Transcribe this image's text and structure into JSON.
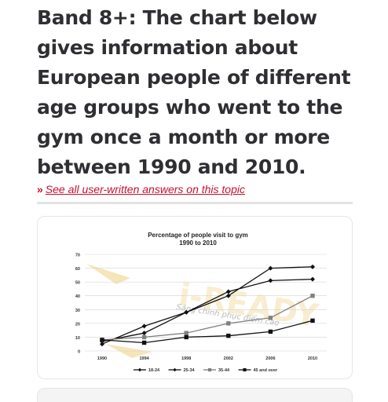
{
  "article": {
    "title": "Band 8+: The chart below gives information about European people of different age groups who went to the gym once a month or more between 1990 and 2010.",
    "link_arrows": "»",
    "link_text": "See all user-written answers on this topic"
  },
  "watermark": {
    "brand": "i-READY",
    "tagline": "Sáng chinh phục điểm cao",
    "color": "#e8c25a"
  },
  "chart_data": {
    "type": "line",
    "title": "Percentage of people visit to gym",
    "subtitle": "1990 to 2010",
    "x": [
      "1990",
      "1994",
      "1998",
      "2002",
      "2006",
      "2010"
    ],
    "ylim": [
      0,
      70
    ],
    "yticks": [
      "0",
      "10",
      "20",
      "30",
      "40",
      "50",
      "60",
      "70"
    ],
    "grid": true,
    "legend_position": "bottom",
    "series": [
      {
        "name": "18-24",
        "marker": "diamond",
        "values": [
          5,
          18,
          28,
          40,
          60,
          61
        ]
      },
      {
        "name": "25-34",
        "marker": "diamond",
        "values": [
          7,
          13,
          28,
          43,
          51,
          52
        ]
      },
      {
        "name": "35-44",
        "marker": "square",
        "values": [
          8,
          10,
          13,
          20,
          24,
          40
        ]
      },
      {
        "name": "45 and over",
        "marker": "square",
        "values": [
          8,
          6,
          10,
          11,
          14,
          22
        ]
      }
    ]
  }
}
